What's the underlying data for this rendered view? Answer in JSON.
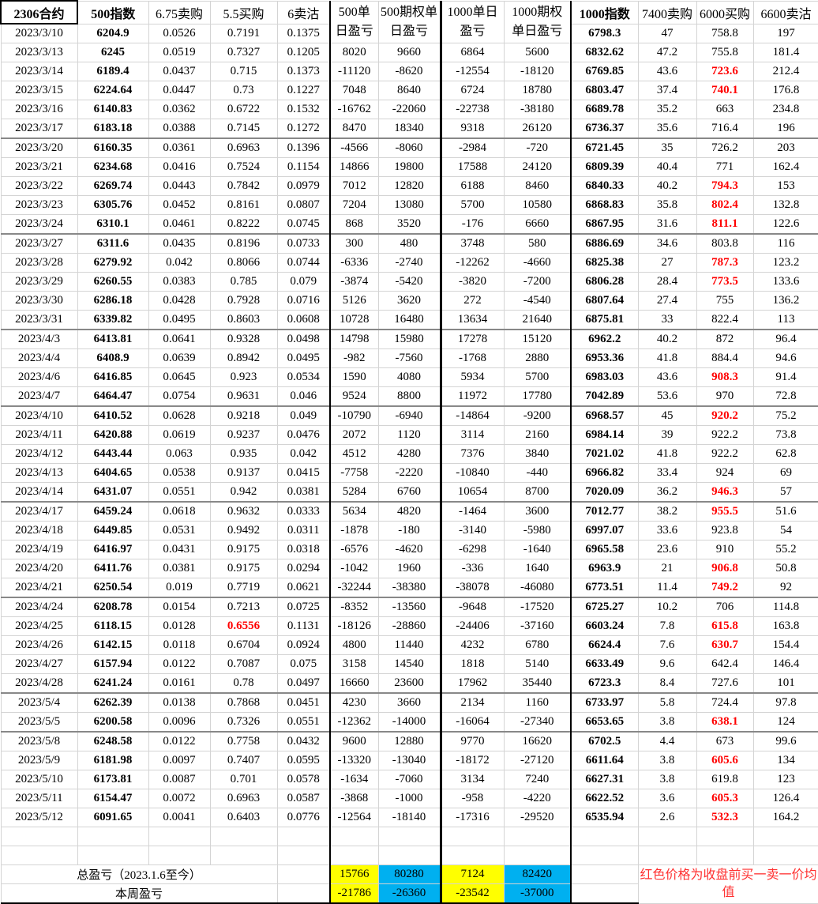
{
  "headers": [
    "2306合约",
    "500指数",
    "6.75卖购",
    "5.5买购",
    "6卖沽",
    "500单日盈亏",
    "500期权单日盈亏",
    "1000单日盈亏",
    "1000期权单日盈亏",
    "1000指数",
    "7400卖购",
    "6000买购",
    "6600卖沽"
  ],
  "colors": {
    "highlight": "#ff0000",
    "total_yellow": "#ffff00",
    "total_blue": "#00b0f0"
  },
  "rows": [
    [
      "2023/3/10",
      "6204.9",
      "0.0526",
      "0.7191",
      "0.1375",
      "",
      "",
      "",
      "",
      "6798.3",
      "47",
      "758.8",
      "197"
    ],
    [
      "2023/3/13",
      "6245",
      "0.0519",
      "0.7327",
      "0.1205",
      "8020",
      "9660",
      "6864",
      "5600",
      "6832.62",
      "47.2",
      "755.8",
      "181.4"
    ],
    [
      "2023/3/14",
      "6189.4",
      "0.0437",
      "0.715",
      "0.1373",
      "-11120",
      "-8620",
      "-12554",
      "-18120",
      "6769.85",
      "43.6",
      "723.6",
      "212.4"
    ],
    [
      "2023/3/15",
      "6224.64",
      "0.0447",
      "0.73",
      "0.1227",
      "7048",
      "8640",
      "6724",
      "18780",
      "6803.47",
      "37.4",
      "740.1",
      "176.8"
    ],
    [
      "2023/3/16",
      "6140.83",
      "0.0362",
      "0.6722",
      "0.1532",
      "-16762",
      "-22060",
      "-22738",
      "-38180",
      "6689.78",
      "35.2",
      "663",
      "234.8"
    ],
    [
      "2023/3/17",
      "6183.18",
      "0.0388",
      "0.7145",
      "0.1272",
      "8470",
      "18340",
      "9318",
      "26120",
      "6736.37",
      "35.6",
      "716.4",
      "196"
    ],
    [
      "2023/3/20",
      "6160.35",
      "0.0361",
      "0.6963",
      "0.1396",
      "-4566",
      "-8060",
      "-2984",
      "-720",
      "6721.45",
      "35",
      "726.2",
      "203"
    ],
    [
      "2023/3/21",
      "6234.68",
      "0.0416",
      "0.7524",
      "0.1154",
      "14866",
      "19800",
      "17588",
      "24120",
      "6809.39",
      "40.4",
      "771",
      "162.4"
    ],
    [
      "2023/3/22",
      "6269.74",
      "0.0443",
      "0.7842",
      "0.0979",
      "7012",
      "12820",
      "6188",
      "8460",
      "6840.33",
      "40.2",
      "794.3",
      "153"
    ],
    [
      "2023/3/23",
      "6305.76",
      "0.0452",
      "0.8161",
      "0.0807",
      "7204",
      "13080",
      "5700",
      "10580",
      "6868.83",
      "35.8",
      "802.4",
      "132.8"
    ],
    [
      "2023/3/24",
      "6310.1",
      "0.0461",
      "0.8222",
      "0.0745",
      "868",
      "3520",
      "-176",
      "6660",
      "6867.95",
      "31.6",
      "811.1",
      "122.6"
    ],
    [
      "2023/3/27",
      "6311.6",
      "0.0435",
      "0.8196",
      "0.0733",
      "300",
      "480",
      "3748",
      "580",
      "6886.69",
      "34.6",
      "803.8",
      "116"
    ],
    [
      "2023/3/28",
      "6279.92",
      "0.042",
      "0.8066",
      "0.0744",
      "-6336",
      "-2740",
      "-12262",
      "-4660",
      "6825.38",
      "27",
      "787.3",
      "123.2"
    ],
    [
      "2023/3/29",
      "6260.55",
      "0.0383",
      "0.785",
      "0.079",
      "-3874",
      "-5420",
      "-3820",
      "-7200",
      "6806.28",
      "28.4",
      "773.5",
      "133.6"
    ],
    [
      "2023/3/30",
      "6286.18",
      "0.0428",
      "0.7928",
      "0.0716",
      "5126",
      "3620",
      "272",
      "-4540",
      "6807.64",
      "27.4",
      "755",
      "136.2"
    ],
    [
      "2023/3/31",
      "6339.82",
      "0.0495",
      "0.8603",
      "0.0608",
      "10728",
      "16480",
      "13634",
      "21640",
      "6875.81",
      "33",
      "822.4",
      "113"
    ],
    [
      "2023/4/3",
      "6413.81",
      "0.0641",
      "0.9328",
      "0.0498",
      "14798",
      "15980",
      "17278",
      "15120",
      "6962.2",
      "40.2",
      "872",
      "96.4"
    ],
    [
      "2023/4/4",
      "6408.9",
      "0.0639",
      "0.8942",
      "0.0495",
      "-982",
      "-7560",
      "-1768",
      "2880",
      "6953.36",
      "41.8",
      "884.4",
      "94.6"
    ],
    [
      "2023/4/6",
      "6416.85",
      "0.0645",
      "0.923",
      "0.0534",
      "1590",
      "4080",
      "5934",
      "5700",
      "6983.03",
      "43.6",
      "908.3",
      "91.4"
    ],
    [
      "2023/4/7",
      "6464.47",
      "0.0754",
      "0.9631",
      "0.046",
      "9524",
      "8800",
      "11972",
      "17780",
      "7042.89",
      "53.6",
      "970",
      "72.8"
    ],
    [
      "2023/4/10",
      "6410.52",
      "0.0628",
      "0.9218",
      "0.049",
      "-10790",
      "-6940",
      "-14864",
      "-9200",
      "6968.57",
      "45",
      "920.2",
      "75.2"
    ],
    [
      "2023/4/11",
      "6420.88",
      "0.0619",
      "0.9237",
      "0.0476",
      "2072",
      "1120",
      "3114",
      "2160",
      "6984.14",
      "39",
      "922.2",
      "73.8"
    ],
    [
      "2023/4/12",
      "6443.44",
      "0.063",
      "0.935",
      "0.042",
      "4512",
      "4280",
      "7376",
      "3840",
      "7021.02",
      "41.8",
      "922.2",
      "62.8"
    ],
    [
      "2023/4/13",
      "6404.65",
      "0.0538",
      "0.9137",
      "0.0415",
      "-7758",
      "-2220",
      "-10840",
      "-440",
      "6966.82",
      "33.4",
      "924",
      "69"
    ],
    [
      "2023/4/14",
      "6431.07",
      "0.0551",
      "0.942",
      "0.0381",
      "5284",
      "6760",
      "10654",
      "8700",
      "7020.09",
      "36.2",
      "946.3",
      "57"
    ],
    [
      "2023/4/17",
      "6459.24",
      "0.0618",
      "0.9632",
      "0.0333",
      "5634",
      "4820",
      "-1464",
      "3600",
      "7012.77",
      "38.2",
      "955.5",
      "51.6"
    ],
    [
      "2023/4/18",
      "6449.85",
      "0.0531",
      "0.9492",
      "0.0311",
      "-1878",
      "-180",
      "-3140",
      "-5980",
      "6997.07",
      "33.6",
      "923.8",
      "54"
    ],
    [
      "2023/4/19",
      "6416.97",
      "0.0431",
      "0.9175",
      "0.0318",
      "-6576",
      "-4620",
      "-6298",
      "-1640",
      "6965.58",
      "23.6",
      "910",
      "55.2"
    ],
    [
      "2023/4/20",
      "6411.76",
      "0.0381",
      "0.9175",
      "0.0294",
      "-1042",
      "1960",
      "-336",
      "1640",
      "6963.9",
      "21",
      "906.8",
      "50.8"
    ],
    [
      "2023/4/21",
      "6250.54",
      "0.019",
      "0.7719",
      "0.0621",
      "-32244",
      "-38380",
      "-38078",
      "-46080",
      "6773.51",
      "11.4",
      "749.2",
      "92"
    ],
    [
      "2023/4/24",
      "6208.78",
      "0.0154",
      "0.7213",
      "0.0725",
      "-8352",
      "-13560",
      "-9648",
      "-17520",
      "6725.27",
      "10.2",
      "706",
      "114.8"
    ],
    [
      "2023/4/25",
      "6118.15",
      "0.0128",
      "0.6556",
      "0.1131",
      "-18126",
      "-28860",
      "-24406",
      "-37160",
      "6603.24",
      "7.8",
      "615.8",
      "163.8"
    ],
    [
      "2023/4/26",
      "6142.15",
      "0.0118",
      "0.6704",
      "0.0924",
      "4800",
      "11440",
      "4232",
      "6780",
      "6624.4",
      "7.6",
      "630.7",
      "154.4"
    ],
    [
      "2023/4/27",
      "6157.94",
      "0.0122",
      "0.7087",
      "0.075",
      "3158",
      "14540",
      "1818",
      "5140",
      "6633.49",
      "9.6",
      "642.4",
      "146.4"
    ],
    [
      "2023/4/28",
      "6241.24",
      "0.0161",
      "0.78",
      "0.0497",
      "16660",
      "23600",
      "17962",
      "35440",
      "6723.3",
      "8.4",
      "727.6",
      "101"
    ],
    [
      "2023/5/4",
      "6262.39",
      "0.0138",
      "0.7868",
      "0.0451",
      "4230",
      "3660",
      "2134",
      "1160",
      "6733.97",
      "5.8",
      "724.4",
      "97.8"
    ],
    [
      "2023/5/5",
      "6200.58",
      "0.0096",
      "0.7326",
      "0.0551",
      "-12362",
      "-14000",
      "-16064",
      "-27340",
      "6653.65",
      "3.8",
      "638.1",
      "124"
    ],
    [
      "2023/5/8",
      "6248.58",
      "0.0122",
      "0.7758",
      "0.0432",
      "9600",
      "12880",
      "9770",
      "16620",
      "6702.5",
      "4.4",
      "673",
      "99.6"
    ],
    [
      "2023/5/9",
      "6181.98",
      "0.0097",
      "0.7407",
      "0.0595",
      "-13320",
      "-13040",
      "-18172",
      "-27120",
      "6611.64",
      "3.8",
      "605.6",
      "134"
    ],
    [
      "2023/5/10",
      "6173.81",
      "0.0087",
      "0.701",
      "0.0578",
      "-1634",
      "-7060",
      "3134",
      "7240",
      "6627.31",
      "3.8",
      "619.8",
      "123"
    ],
    [
      "2023/5/11",
      "6154.47",
      "0.0072",
      "0.6963",
      "0.0587",
      "-3868",
      "-1000",
      "-958",
      "-4220",
      "6622.52",
      "3.6",
      "605.3",
      "126.4"
    ],
    [
      "2023/5/12",
      "6091.65",
      "0.0041",
      "0.6403",
      "0.0776",
      "-12564",
      "-18140",
      "-17316",
      "-29520",
      "6535.94",
      "2.6",
      "532.3",
      "164.2"
    ]
  ],
  "red_cells": {
    "2023/3/14": [
      11
    ],
    "2023/3/15": [
      11
    ],
    "2023/3/22": [
      11
    ],
    "2023/3/23": [
      11
    ],
    "2023/3/24": [
      11
    ],
    "2023/3/28": [
      11
    ],
    "2023/3/29": [
      11
    ],
    "2023/4/6": [
      11
    ],
    "2023/4/10": [
      11
    ],
    "2023/4/14": [
      11
    ],
    "2023/4/17": [
      11
    ],
    "2023/4/20": [
      11
    ],
    "2023/4/21": [
      11
    ],
    "2023/4/25": [
      3,
      11
    ],
    "2023/4/26": [
      11
    ],
    "2023/5/5": [
      11
    ],
    "2023/5/9": [
      11
    ],
    "2023/5/11": [
      11
    ],
    "2023/5/12": [
      11
    ]
  },
  "totals": {
    "total_label": "总盈亏（2023.1.6至今）",
    "total_values": [
      "15766",
      "80280",
      "7124",
      "82420"
    ],
    "week_label": "本周盈亏",
    "week_values": [
      "-21786",
      "-26360",
      "-23542",
      "-37000"
    ],
    "note": "红色价格为收盘前买一卖一价均值"
  }
}
